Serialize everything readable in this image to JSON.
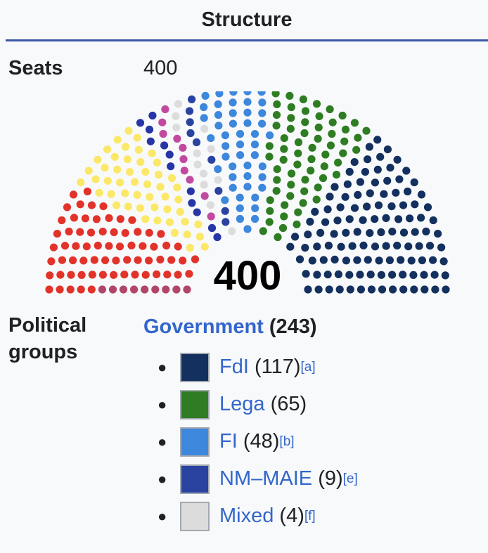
{
  "header": {
    "title": "Structure"
  },
  "seats": {
    "label": "Seats",
    "value": "400"
  },
  "political_groups": {
    "label_line1": "Political",
    "label_line2": "groups",
    "government_label": "Government",
    "government_count": "(243)",
    "parties": [
      {
        "name": "FdI",
        "count": "(117)",
        "note": "[a]",
        "color": "#13305e"
      },
      {
        "name": "Lega",
        "count": "(65)",
        "note": "",
        "color": "#2e7d22"
      },
      {
        "name": "FI",
        "count": "(48)",
        "note": "[b]",
        "color": "#3d87dc"
      },
      {
        "name": "NM–MAIE",
        "count": "(9)",
        "note": "[e]",
        "color": "#2a43a0"
      },
      {
        "name": "Mixed",
        "count": "(4)",
        "note": "[f]",
        "color": "#dcdcdc"
      }
    ]
  },
  "chart_data": {
    "type": "parliament",
    "total": 400,
    "center_label": "400",
    "series": [
      {
        "value": 9,
        "color": "#b0476a"
      },
      {
        "value": 68,
        "color": "#e2332b"
      },
      {
        "value": 50,
        "color": "#fbe868"
      },
      {
        "value": 12,
        "color": "#2636a6"
      },
      {
        "value": 10,
        "color": "#c14aa0"
      },
      {
        "value": 8,
        "color": "#dcdcdc"
      },
      {
        "value": 9,
        "color": "#2a43a0"
      },
      {
        "value": 4,
        "color": "#dcdcdc"
      },
      {
        "value": 48,
        "color": "#3d87dc"
      },
      {
        "value": 65,
        "color": "#2e7d22"
      },
      {
        "value": 117,
        "color": "#13305e"
      }
    ]
  }
}
